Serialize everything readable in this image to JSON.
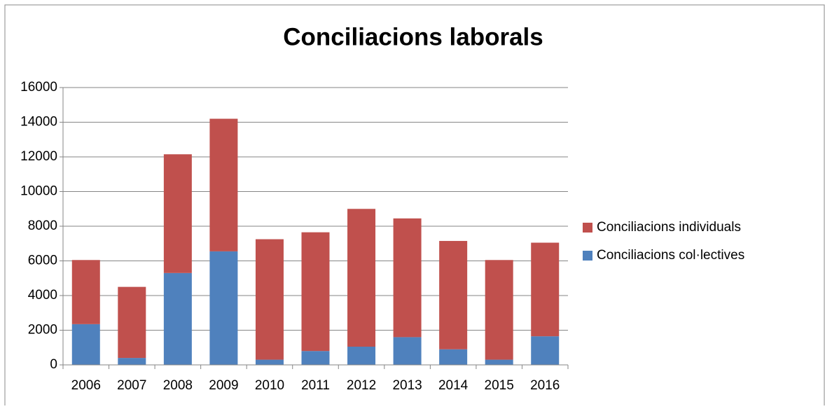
{
  "chart_data": {
    "type": "stacked_bar",
    "title": "Conciliacions laborals",
    "categories": [
      "2006",
      "2007",
      "2008",
      "2009",
      "2010",
      "2011",
      "2012",
      "2013",
      "2014",
      "2015",
      "2016"
    ],
    "series": [
      {
        "name": "Conciliacions col·lectives",
        "color": "#4f81bd",
        "values": [
          2350,
          400,
          5300,
          6550,
          300,
          800,
          1050,
          1600,
          900,
          300,
          1650
        ]
      },
      {
        "name": "Conciliacions individuals",
        "color": "#c0504d",
        "values": [
          3700,
          4100,
          6850,
          7650,
          6950,
          6850,
          7950,
          6850,
          6250,
          5750,
          5400
        ]
      }
    ],
    "ylim": [
      0,
      16000
    ],
    "yticks": [
      0,
      2000,
      4000,
      6000,
      8000,
      10000,
      12000,
      14000,
      16000
    ],
    "grid": true,
    "legend": "right"
  }
}
